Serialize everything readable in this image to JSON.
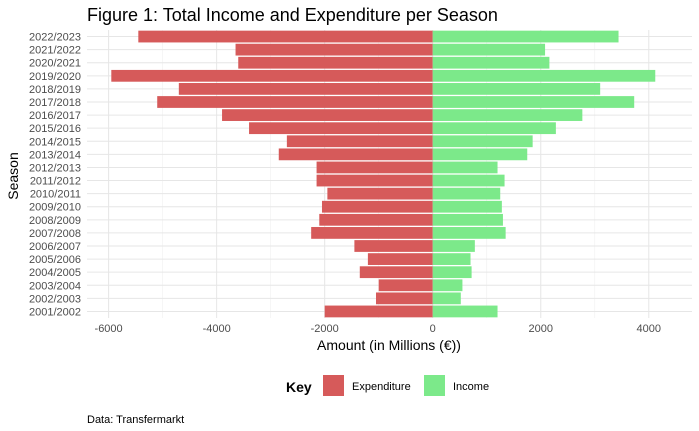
{
  "chart_data": {
    "type": "bar",
    "orientation": "horizontal",
    "title": "Figure 1: Total Income and Expenditure per Season",
    "xlabel": "Amount (in Millions (€))",
    "ylabel": "Season",
    "xlim": [
      -6400,
      4800
    ],
    "xticks": [
      -6000,
      -4000,
      -2000,
      0,
      2000,
      4000
    ],
    "grid": true,
    "legend_title": "Key",
    "legend_position": "bottom",
    "caption": "Data: Transfermarkt",
    "categories": [
      "2001/2002",
      "2002/2003",
      "2003/2004",
      "2004/2005",
      "2005/2006",
      "2006/2007",
      "2007/2008",
      "2008/2009",
      "2009/2010",
      "2010/2011",
      "2011/2012",
      "2012/2013",
      "2013/2014",
      "2014/2015",
      "2015/2016",
      "2016/2017",
      "2017/2018",
      "2018/2019",
      "2019/2020",
      "2020/2021",
      "2021/2022",
      "2022/2023"
    ],
    "series": [
      {
        "name": "Expenditure",
        "color": "#d65a5a",
        "values": [
          -2000,
          -1050,
          -1000,
          -1350,
          -1200,
          -1450,
          -2250,
          -2100,
          -2050,
          -1950,
          -2150,
          -2150,
          -2850,
          -2700,
          -3400,
          -3900,
          -5100,
          -4700,
          -5950,
          -3600,
          -3650,
          -5450
        ]
      },
      {
        "name": "Income",
        "color": "#7ce98a",
        "values": [
          1200,
          520,
          550,
          720,
          700,
          780,
          1350,
          1300,
          1280,
          1250,
          1330,
          1200,
          1750,
          1850,
          2280,
          2770,
          3730,
          3100,
          4120,
          2160,
          2080,
          3440
        ]
      }
    ]
  }
}
